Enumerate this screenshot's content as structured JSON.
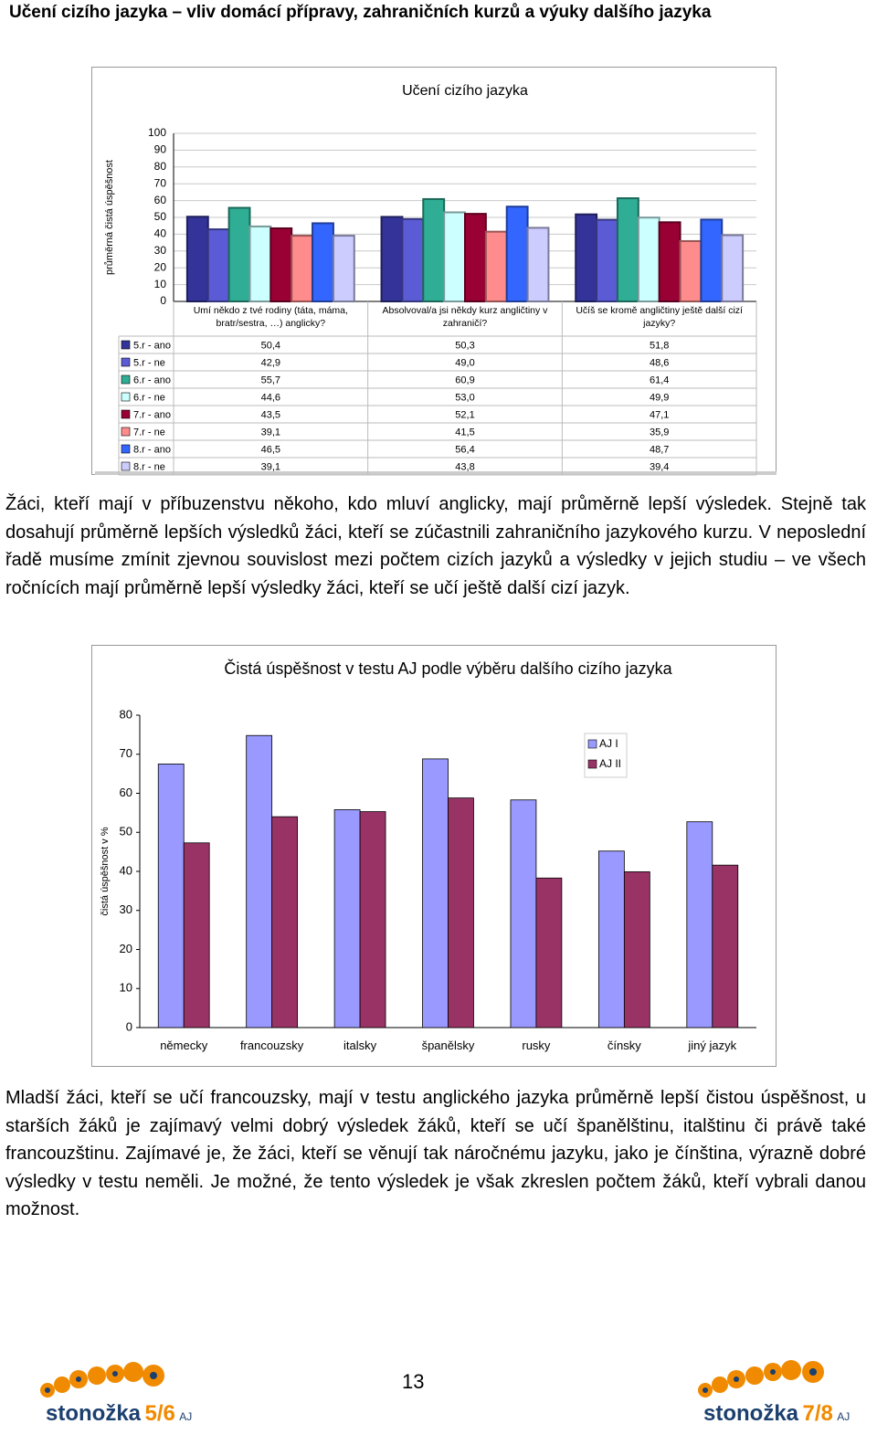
{
  "heading": "Učení cizího jazyka – vliv domácí přípravy, zahraničních kurzů a výuky dalšího jazyka",
  "chart_data": [
    {
      "type": "bar",
      "title": "Učení cizího jazyka",
      "y_label": "průměrná čistá úspěšnost",
      "categories": [
        "Umí někdo z tvé rodiny (táta, máma, bratr/sestra, …) anglicky?",
        "Absolvoval/a jsi někdy kurz angličtiny v zahraničí?",
        "Učíš se kromě angličtiny ještě další cizí jazyky?"
      ],
      "series": [
        {
          "name": "5.r - ano",
          "color": "#333399",
          "values": [
            50.4,
            50.3,
            51.8
          ],
          "value_labels": [
            "50,4",
            "50,3",
            "51,8"
          ]
        },
        {
          "name": "5.r - ne",
          "color": "#5b5bd6",
          "values": [
            42.9,
            49.0,
            48.6
          ],
          "value_labels": [
            "42,9",
            "49,0",
            "48,6"
          ]
        },
        {
          "name": "6.r - ano",
          "color": "#2fae95",
          "values": [
            55.7,
            60.9,
            61.4
          ],
          "value_labels": [
            "55,7",
            "60,9",
            "61,4"
          ]
        },
        {
          "name": "6.r - ne",
          "color": "#ccffff",
          "values": [
            44.6,
            53.0,
            49.9
          ],
          "value_labels": [
            "44,6",
            "53,0",
            "49,9"
          ]
        },
        {
          "name": "7.r - ano",
          "color": "#990033",
          "values": [
            43.5,
            52.1,
            47.1
          ],
          "value_labels": [
            "43,5",
            "52,1",
            "47,1"
          ]
        },
        {
          "name": "7.r - ne",
          "color": "#ff8c8c",
          "values": [
            39.1,
            41.5,
            35.9
          ],
          "value_labels": [
            "39,1",
            "41,5",
            "35,9"
          ]
        },
        {
          "name": "8.r - ano",
          "color": "#3366ff",
          "values": [
            46.5,
            56.4,
            48.7
          ],
          "value_labels": [
            "46,5",
            "56,4",
            "48,7"
          ]
        },
        {
          "name": "8.r - ne",
          "color": "#ccccff",
          "values": [
            39.1,
            43.8,
            39.4
          ],
          "value_labels": [
            "39,1",
            "43,8",
            "39,4"
          ]
        }
      ],
      "ylim": [
        0,
        100
      ],
      "yticks": [
        0,
        10,
        20,
        30,
        40,
        50,
        60,
        70,
        80,
        90,
        100
      ],
      "grid": true,
      "legend": "table"
    },
    {
      "type": "bar",
      "title": "Čistá úspěšnost v testu AJ podle výběru dalšího cizího jazyka",
      "y_label": "čistá úspěšnost v %",
      "categories": [
        "německy",
        "francouzsky",
        "italsky",
        "španělsky",
        "rusky",
        "čínsky",
        "jiný jazyk"
      ],
      "series": [
        {
          "name": "AJ I",
          "color": "#9999ff",
          "values": [
            67.5,
            74.8,
            55.8,
            68.8,
            58.3,
            45.2,
            52.7
          ]
        },
        {
          "name": "AJ II",
          "color": "#993366",
          "values": [
            47.3,
            54.0,
            55.3,
            58.8,
            38.3,
            39.9,
            41.6
          ]
        }
      ],
      "ylim": [
        0,
        80
      ],
      "yticks": [
        0,
        10,
        20,
        30,
        40,
        50,
        60,
        70,
        80
      ],
      "grid": false,
      "legend": "top-right"
    }
  ],
  "paragraphs": [
    "Žáci, kteří mají v příbuzenstvu někoho, kdo mluví anglicky, mají průměrně lepší výsledek. Stejně tak dosahují průměrně lepších výsledků žáci, kteří se zúčastnili zahraničního jazykového kurzu. V neposlední řadě musíme zmínit zjevnou souvislost mezi počtem cizích jazyků a výsledky v jejich studiu – ve všech ročnících mají průměrně lepší výsledky žáci, kteří se učí ještě další cizí jazyk.",
    "Mladší žáci, kteří se učí francouzsky, mají v testu anglického jazyka průměrně lepší čistou úspěšnost, u starších žáků je zajímavý velmi dobrý výsledek žáků, kteří se učí španělštinu, italštinu či právě také francouzštinu. Zajímavé je, že žáci, kteří se věnují tak náročnému jazyku, jako je čínština, výrazně dobré výsledky v testu neměli. Je možné, že tento výsledek je však zkreslen počtem žáků, kteří vybrali danou možnost."
  ],
  "page_number": "13",
  "logos": [
    {
      "name": "stonožka",
      "grade": "5/6",
      "subject": "AJ"
    },
    {
      "name": "stonožka",
      "grade": "7/8",
      "subject": "AJ"
    }
  ]
}
